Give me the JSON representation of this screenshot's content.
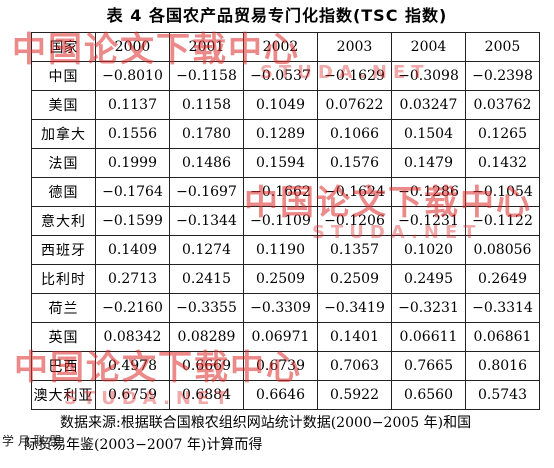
{
  "title": "表 4   各国农产品贸易专门化指数(TSC 指数)",
  "table": {
    "header": [
      "国家",
      "2000",
      "2001",
      "2002",
      "2003",
      "2004",
      "2005"
    ],
    "rows": [
      [
        "中国",
        "−0.8010",
        "−0.1158",
        "−0.0537",
        "−0.1629",
        "−0.3098",
        "−0.2398"
      ],
      [
        "美国",
        "0.1137",
        "0.1158",
        "0.1049",
        "0.07622",
        "0.03247",
        "0.03762"
      ],
      [
        "加拿大",
        "0.1556",
        "0.1780",
        "0.1289",
        "0.1066",
        "0.1504",
        "0.1265"
      ],
      [
        "法国",
        "0.1999",
        "0.1486",
        "0.1594",
        "0.1576",
        "0.1479",
        "0.1432"
      ],
      [
        "德国",
        "−0.1764",
        "−0.1697",
        "−0.1662",
        "−0.1624",
        "−0.1286",
        "−0.1054"
      ],
      [
        "意大利",
        "−0.1599",
        "−0.1344",
        "−0.1109",
        "−0.1206",
        "−0.1231",
        "−0.1122"
      ],
      [
        "西班牙",
        "0.1409",
        "0.1274",
        "0.1190",
        "0.1357",
        "0.1020",
        "0.08056"
      ],
      [
        "比利时",
        "0.2713",
        "0.2415",
        "0.2509",
        "0.2509",
        "0.2495",
        "0.2649"
      ],
      [
        "荷兰",
        "−0.2160",
        "−0.3355",
        "−0.3309",
        "−0.3419",
        "−0.3231",
        "−0.3314"
      ],
      [
        "英国",
        "0.08342",
        "0.08289",
        "0.06971",
        "0.1401",
        "0.06611",
        "0.06861"
      ],
      [
        "巴西",
        "0.4978",
        "0.6669",
        "0.6739",
        "0.7063",
        "0.7665",
        "0.8016"
      ],
      [
        "澳大利亚",
        "0.6759",
        "0.6884",
        "0.6646",
        "0.5922",
        "0.6560",
        "0.5743"
      ]
    ]
  },
  "note": {
    "line1": "数据来源:根据联合国粮农组织网站统计数据(2000−2005 年)和国",
    "line2": "际贸易年鉴(2003−2007 年)计算而得"
  },
  "watermarks": {
    "cn_text": "中国论文下载中心",
    "url_text": "STUDA.NET",
    "logo_text": "学 月 联 盟"
  }
}
